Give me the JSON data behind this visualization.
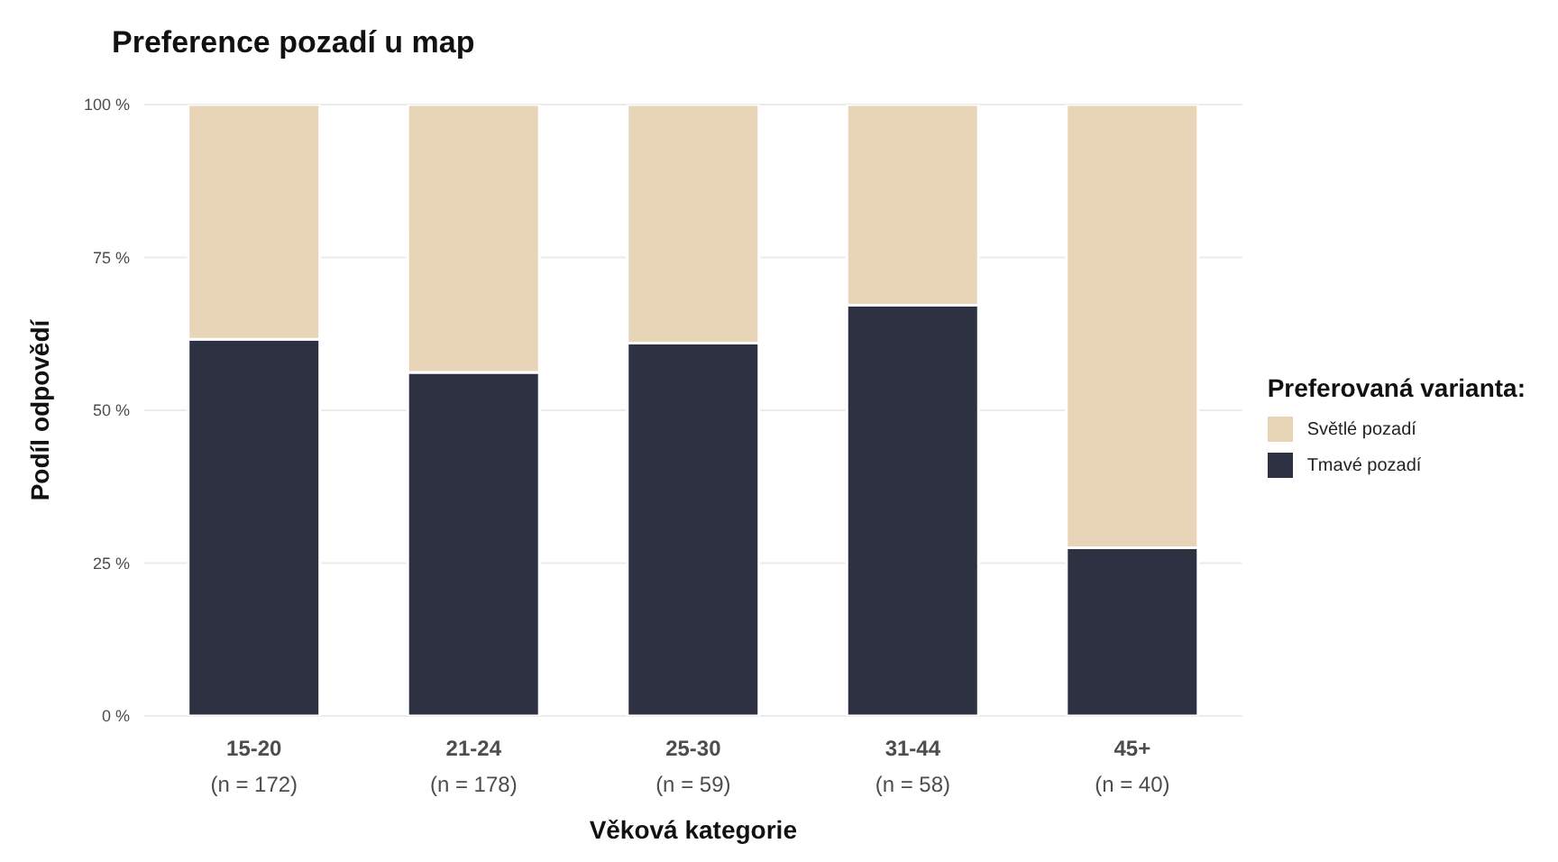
{
  "chart_data": {
    "type": "bar",
    "title": "Preference pozadí u map",
    "xlabel": "Věková kategorie",
    "ylabel": "Podíl odpovědí",
    "legend_title": "Preferovaná varianta:",
    "categories": [
      "15-20\n(n = 172)",
      "21-24\n(n = 178)",
      "25-30\n(n = 59)",
      "31-44\n(n = 58)",
      "45+\n(n = 40)"
    ],
    "stacked": true,
    "series": [
      {
        "name": "Tmavé pozadí",
        "color": "#2d3142",
        "values": [
          61.6,
          56.2,
          61.0,
          67.2,
          27.5
        ]
      },
      {
        "name": "Světlé pozadí",
        "color": "#e8d5b7",
        "values": [
          38.4,
          43.8,
          39.0,
          32.8,
          72.5
        ]
      }
    ],
    "ylim": [
      0,
      100
    ],
    "yticks": [
      {
        "value": 0,
        "label": "0 %"
      },
      {
        "value": 25,
        "label": "25 %"
      },
      {
        "value": 50,
        "label": "50 %"
      },
      {
        "value": 75,
        "label": "75 %"
      },
      {
        "value": 100,
        "label": "100 %"
      }
    ],
    "grid": "y",
    "legend": "right"
  }
}
